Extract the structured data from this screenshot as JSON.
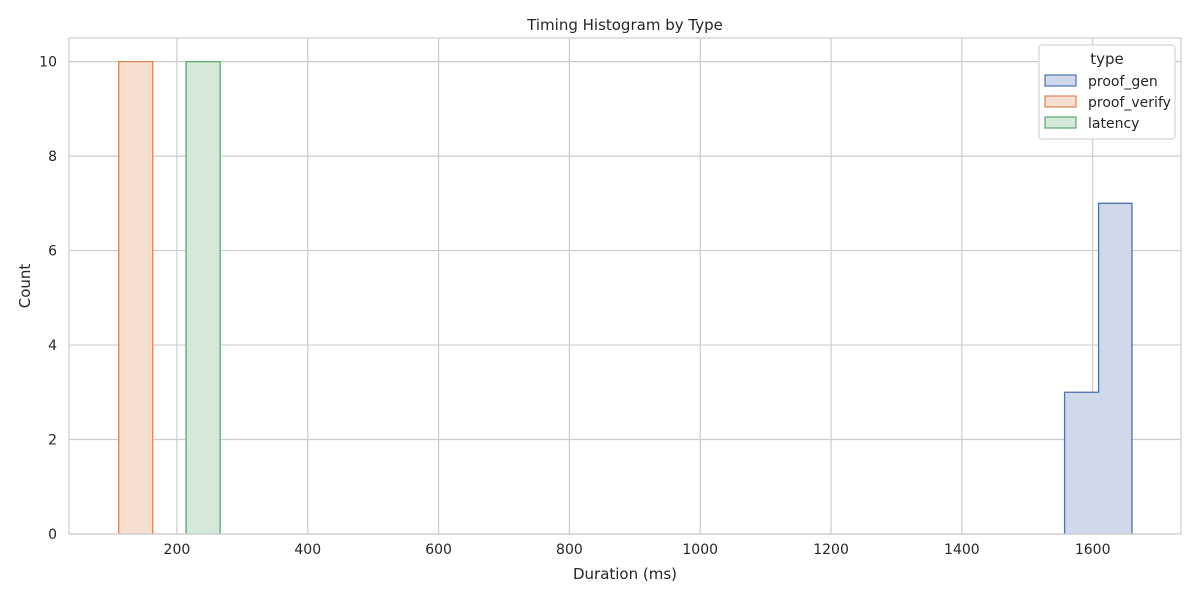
{
  "chart_data": {
    "type": "bar",
    "title": "Timing Histogram by Type",
    "xlabel": "Duration (ms)",
    "ylabel": "Count",
    "xlim": [
      35,
      1735
    ],
    "ylim": [
      0,
      10.5
    ],
    "xticks": [
      200,
      400,
      600,
      800,
      1000,
      1200,
      1400,
      1600
    ],
    "yticks": [
      0,
      2,
      4,
      6,
      8,
      10
    ],
    "grid": true,
    "legend": {
      "title": "type",
      "placement": "top-right"
    },
    "series": [
      {
        "name": "proof_gen",
        "color": "#4c72b0",
        "fill": "#cfd9ea",
        "bins": [
          {
            "x0": 1557,
            "x1": 1609,
            "count": 3
          },
          {
            "x0": 1609,
            "x1": 1660,
            "count": 7
          }
        ]
      },
      {
        "name": "proof_verify",
        "color": "#dd8452",
        "fill": "#f6ded1",
        "bins": [
          {
            "x0": 111,
            "x1": 163,
            "count": 10
          }
        ]
      },
      {
        "name": "latency",
        "color": "#55a868",
        "fill": "#d5e8d9",
        "bins": [
          {
            "x0": 214,
            "x1": 266,
            "count": 10
          }
        ]
      }
    ]
  }
}
